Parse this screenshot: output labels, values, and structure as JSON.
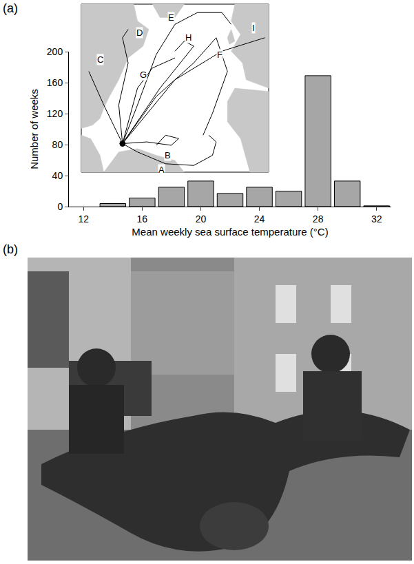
{
  "chart_data": {
    "type": "histogram",
    "bins": [
      13,
      15,
      17,
      19,
      21,
      23,
      25,
      27,
      29,
      31,
      33
    ],
    "values": [
      4,
      11,
      25,
      33,
      17,
      25,
      20,
      169,
      33,
      1
    ],
    "color": "#a6a6a6",
    "xlabel": "Mean weekly sea surface temperature (°C)",
    "ylabel": "Number of weeks",
    "xlim": [
      11,
      33
    ],
    "xticks": [
      12,
      16,
      20,
      24,
      28,
      32
    ],
    "ylim": [
      0,
      200
    ],
    "yticks": [
      0,
      40,
      80,
      120,
      160,
      200
    ],
    "grid": false
  },
  "panel_labels": [
    "(a)",
    "(b)"
  ],
  "inset_map": {
    "track_labels": [
      "A",
      "B",
      "C",
      "D",
      "E",
      "F",
      "G",
      "H",
      "I"
    ]
  }
}
